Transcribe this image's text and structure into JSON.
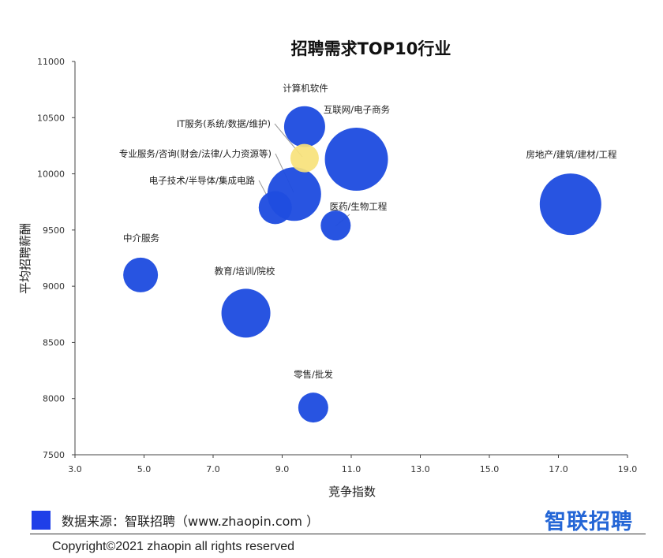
{
  "chart_data": {
    "type": "bubble",
    "title": "招聘需求TOP10行业",
    "xlabel": "竞争指数",
    "ylabel": "平均招聘薪酬",
    "xlim": [
      3.0,
      19.0
    ],
    "ylim": [
      7500,
      11000
    ],
    "xticks": [
      "3.0",
      "5.0",
      "7.0",
      "9.0",
      "11.0",
      "13.0",
      "15.0",
      "17.0",
      "19.0"
    ],
    "yticks": [
      "7500",
      "8000",
      "8500",
      "9000",
      "9500",
      "10000",
      "10500",
      "11000"
    ],
    "points": [
      {
        "name": "计算机软件",
        "x": 9.65,
        "y": 10420,
        "size": 26,
        "color": "#1f4de0"
      },
      {
        "name": "互联网/电子商务",
        "x": 11.15,
        "y": 10130,
        "size": 40,
        "color": "#1f4de0"
      },
      {
        "name": "IT服务(系统/数据/维护)",
        "x": 9.65,
        "y": 10140,
        "size": 18,
        "color": "#f7e27b"
      },
      {
        "name": "专业服务/咨询(财会/法律/人力资源等)",
        "x": 9.35,
        "y": 9820,
        "size": 34,
        "color": "#1f4de0"
      },
      {
        "name": "电子技术/半导体/集成电路",
        "x": 8.8,
        "y": 9700,
        "size": 21,
        "color": "#1f4de0"
      },
      {
        "name": "医药/生物工程",
        "x": 10.55,
        "y": 9540,
        "size": 19,
        "color": "#1f4de0"
      },
      {
        "name": "房地产/建筑/建材/工程",
        "x": 17.35,
        "y": 9730,
        "size": 39,
        "color": "#1f4de0"
      },
      {
        "name": "中介服务",
        "x": 4.9,
        "y": 9100,
        "size": 22,
        "color": "#1f4de0"
      },
      {
        "name": "教育/培训/院校",
        "x": 7.95,
        "y": 8760,
        "size": 31,
        "color": "#1f4de0"
      },
      {
        "name": "零售/批发",
        "x": 9.9,
        "y": 7920,
        "size": 19,
        "color": "#1f4de0"
      }
    ]
  },
  "legend": {
    "text": "数据来源：智联招聘（www.zhaopin.com  ）",
    "color": "#1f3fe8"
  },
  "logo": {
    "text": "智联招聘"
  },
  "footer": {
    "copyright": "Copyright©2021 zhaopin all rights reserved"
  }
}
